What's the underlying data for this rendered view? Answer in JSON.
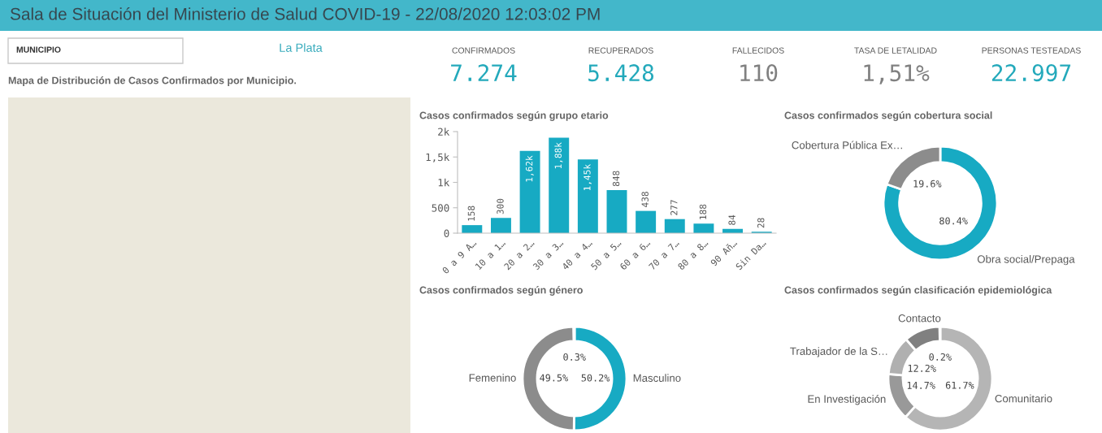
{
  "chart_data": [
    {
      "type": "other",
      "title": "Sala de Situación del Ministerio de Salud COVID-19 - 22/08/2020 12:03:02 PM"
    },
    {
      "type": "other",
      "title": "Mapa de Distribución de Casos Confirmados por Municipio.",
      "annotations": [
        "MUNICIPIO",
        "La Plata"
      ]
    },
    {
      "type": "other",
      "categories": [
        "CONFIRMADOS",
        "RECUPERADOS",
        "FALLECIDOS",
        "TASA DE LETALIDAD",
        "PERSONAS TESTEADAS"
      ],
      "value_labels": [
        "7.274",
        "5.428",
        "110",
        "1,51%",
        "22.997"
      ],
      "colors": [
        "#23a9bb",
        "#23a9bb",
        "#808080",
        "#808080",
        "#23a9bb"
      ]
    },
    {
      "type": "bar",
      "title": "Casos confirmados según grupo etario",
      "categories": [
        "0 a 9 A…",
        "10 a 1…",
        "20 a 2…",
        "30 a 3…",
        "40 a 4…",
        "50 a 5…",
        "60 a 6…",
        "70 a 7…",
        "80 a 8…",
        "90 Añ…",
        "Sin Da…"
      ],
      "values": [
        158,
        300,
        1620,
        1880,
        1450,
        848,
        438,
        277,
        188,
        84,
        28
      ],
      "value_labels": [
        "158",
        "300",
        "1,62k",
        "1,88k",
        "1,45k",
        "848",
        "438",
        "277",
        "188",
        "84",
        "28"
      ],
      "color": "#17aac3",
      "ylim": [
        0,
        2000
      ],
      "yticks": [
        0,
        500,
        {
          "value": 1000,
          "label": "1k"
        },
        {
          "value": 1500,
          "label": "1,5k"
        },
        {
          "value": 2000,
          "label": "2k"
        }
      ]
    },
    {
      "type": "donut",
      "title": "Casos confirmados según cobertura social",
      "categories": [
        "Obra social/Prepaga",
        "Cobertura Pública Ex…"
      ],
      "values": [
        80.4,
        19.6
      ],
      "value_labels": [
        "80.4%",
        "19.6%"
      ],
      "colors": [
        "#17aac3",
        "#8c8c8c"
      ]
    },
    {
      "type": "donut",
      "title": "Casos confirmados según género",
      "categories": [
        "Masculino",
        "Femenino",
        null
      ],
      "values": [
        50.2,
        49.5,
        0.3
      ],
      "value_labels": [
        "50.2%",
        "49.5%",
        "0.3%"
      ],
      "colors": [
        "#17aac3",
        "#8c8c8c",
        "#c8c8c8"
      ]
    },
    {
      "type": "donut",
      "title": "Casos confirmados según clasificación epidemiológica",
      "categories": [
        "Comunitario",
        "En Investigación",
        "Trabajador de la S…",
        "Contacto",
        null
      ],
      "values": [
        61.7,
        14.7,
        12.2,
        11.2,
        0.2
      ],
      "value_labels": [
        "61.7%",
        "14.7%",
        "12.2%",
        null,
        "0.2%"
      ],
      "colors": [
        "#b5b5b5",
        "#999999",
        "#b0b0b0",
        "#808080",
        "#cccccc"
      ]
    }
  ]
}
